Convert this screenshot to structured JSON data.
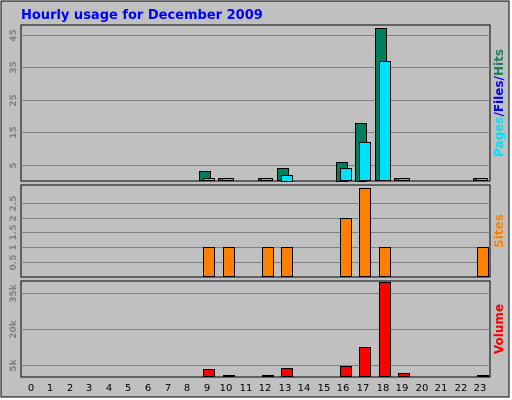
{
  "chart_data": {
    "type": "bar",
    "title": "Hourly usage for December 2009",
    "categories": [
      "0",
      "1",
      "2",
      "3",
      "4",
      "5",
      "6",
      "7",
      "8",
      "9",
      "10",
      "11",
      "12",
      "13",
      "14",
      "15",
      "16",
      "17",
      "18",
      "19",
      "20",
      "21",
      "22",
      "23"
    ],
    "panels": [
      {
        "id": "pfh",
        "ylim": [
          0,
          48
        ],
        "ticks": [
          {
            "value": 5,
            "label": "5"
          },
          {
            "value": 15,
            "label": "15"
          },
          {
            "value": 25,
            "label": "25"
          },
          {
            "value": 35,
            "label": "35"
          },
          {
            "value": 45,
            "label": "45"
          }
        ],
        "ylabel_parts": [
          {
            "text": "Pages",
            "color": "#00e0ff"
          },
          {
            "text": "/",
            "color": "#0000ff"
          },
          {
            "text": "Files",
            "color": "#0000ff"
          },
          {
            "text": "/",
            "color": "#0000ff"
          },
          {
            "text": "Hits",
            "color": "#1f7f5f"
          }
        ],
        "series": [
          {
            "name": "Hits",
            "color": "#007f60",
            "offset": 0,
            "values": [
              0,
              0,
              0,
              0,
              0,
              0,
              0,
              0,
              0,
              3,
              1,
              0,
              1,
              4,
              0,
              0,
              6,
              18,
              47,
              1,
              0,
              0,
              0,
              1
            ]
          },
          {
            "name": "Files",
            "color": "#0000ff",
            "offset": 1,
            "values": [
              0,
              0,
              0,
              0,
              0,
              0,
              0,
              0,
              0,
              1,
              1,
              0,
              1,
              2,
              0,
              0,
              4,
              12,
              37,
              1,
              0,
              0,
              0,
              1
            ]
          },
          {
            "name": "Pages",
            "color": "#00e0ff",
            "offset": 1,
            "values": [
              0,
              0,
              0,
              0,
              0,
              0,
              0,
              0,
              0,
              1,
              1,
              0,
              1,
              2,
              0,
              0,
              4,
              12,
              37,
              1,
              0,
              0,
              0,
              1
            ]
          }
        ]
      },
      {
        "id": "sites",
        "ylim": [
          0,
          3.1
        ],
        "ticks": [
          {
            "value": 0.5,
            "label": "0.5"
          },
          {
            "value": 1.0,
            "label": "1"
          },
          {
            "value": 1.5,
            "label": "1.5"
          },
          {
            "value": 2.0,
            "label": "2"
          },
          {
            "value": 2.5,
            "label": "2.5"
          }
        ],
        "ylabel_parts": [
          {
            "text": "Sites",
            "color": "#ff8000"
          }
        ],
        "series": [
          {
            "name": "Sites",
            "color": "#ff8000",
            "offset": 0.5,
            "values": [
              0,
              0,
              0,
              0,
              0,
              0,
              0,
              0,
              0,
              1,
              1,
              0,
              1,
              1,
              0,
              0,
              2,
              3,
              1,
              0,
              0,
              0,
              0,
              1
            ]
          }
        ]
      },
      {
        "id": "volume",
        "ylim": [
          0,
          40000
        ],
        "ticks": [
          {
            "value": 5000,
            "label": "5k"
          },
          {
            "value": 20000,
            "label": "20k"
          },
          {
            "value": 35000,
            "label": "35k"
          }
        ],
        "ylabel_parts": [
          {
            "text": "Volume",
            "color": "#ff0000"
          }
        ],
        "series": [
          {
            "name": "Volume",
            "color": "#ff0000",
            "offset": 0.5,
            "values": [
              0,
              0,
              0,
              0,
              0,
              0,
              0,
              0,
              0,
              3400,
              1000,
              0,
              700,
              3900,
              0,
              0,
              4500,
              12500,
              39500,
              1500,
              0,
              0,
              0,
              700
            ]
          }
        ]
      }
    ]
  }
}
